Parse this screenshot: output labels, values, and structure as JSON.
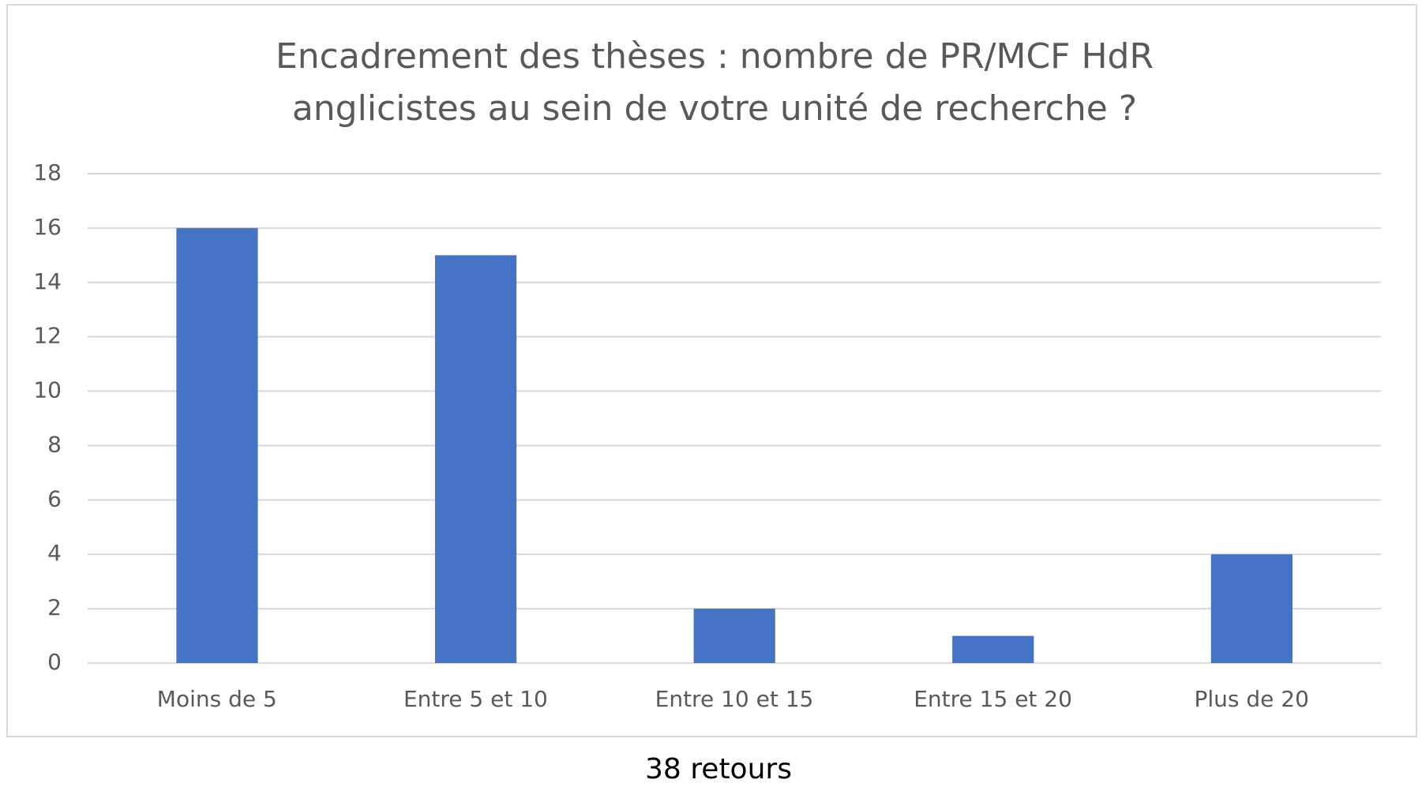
{
  "chart_data": {
    "type": "bar",
    "title": [
      "Encadrement des thèses : nombre de PR/MCF HdR",
      "anglicistes au sein de votre unité de recherche ?"
    ],
    "categories": [
      "Moins de 5",
      "Entre 5 et 10",
      "Entre 10 et 15",
      "Entre 15 et 20",
      "Plus de 20"
    ],
    "values": [
      16,
      15,
      2,
      1,
      4
    ],
    "color": "#4472c4",
    "ylim": [
      0,
      18
    ],
    "yticks": [
      0,
      2,
      4,
      6,
      8,
      10,
      12,
      14,
      16,
      18
    ],
    "grid": true,
    "annotation": "38 retours"
  }
}
